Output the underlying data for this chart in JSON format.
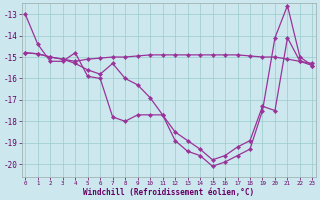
{
  "xlabel": "Windchill (Refroidissement éolien,°C)",
  "bg_color": "#cce8ee",
  "grid_color": "#99cccc",
  "line_color": "#993399",
  "xticks": [
    0,
    1,
    2,
    3,
    4,
    5,
    6,
    7,
    8,
    9,
    10,
    11,
    12,
    13,
    14,
    15,
    16,
    17,
    18,
    19,
    20,
    21,
    22,
    23
  ],
  "yticks": [
    -13,
    -14,
    -15,
    -16,
    -17,
    -18,
    -19,
    -20
  ],
  "ylim": [
    -20.6,
    -12.5
  ],
  "xlim": [
    -0.3,
    23.3
  ],
  "series1_x": [
    0,
    1,
    2,
    3,
    4,
    5,
    6,
    7,
    8,
    9,
    10,
    11,
    12,
    13,
    14,
    15,
    16,
    17,
    18,
    19,
    20,
    21,
    22,
    23
  ],
  "series1_y": [
    -13.0,
    -14.4,
    -15.2,
    -15.2,
    -14.8,
    -15.9,
    -16.0,
    -17.8,
    -18.0,
    -17.7,
    -17.7,
    -17.7,
    -18.9,
    -19.4,
    -19.6,
    -20.1,
    -19.9,
    -19.6,
    -19.3,
    -17.5,
    -14.1,
    -12.6,
    -15.0,
    -15.4
  ],
  "series2_x": [
    0,
    1,
    2,
    3,
    4,
    5,
    6,
    7,
    8,
    9,
    10,
    11,
    12,
    13,
    14,
    15,
    16,
    17,
    18,
    19,
    20,
    21,
    22,
    23
  ],
  "series2_y": [
    -14.8,
    -14.85,
    -15.0,
    -15.1,
    -15.3,
    -15.6,
    -15.8,
    -15.3,
    -16.0,
    -16.3,
    -16.9,
    -17.7,
    -18.5,
    -18.9,
    -19.3,
    -19.8,
    -19.6,
    -19.2,
    -18.9,
    -17.3,
    -17.5,
    -14.1,
    -15.2,
    -15.4
  ],
  "series3_x": [
    0,
    1,
    2,
    3,
    4,
    5,
    6,
    7,
    8,
    9,
    10,
    11,
    12,
    13,
    14,
    15,
    16,
    17,
    18,
    19,
    20,
    21,
    22,
    23
  ],
  "series3_y": [
    -14.8,
    -14.85,
    -15.0,
    -15.1,
    -15.2,
    -15.1,
    -15.05,
    -15.0,
    -15.0,
    -14.95,
    -14.9,
    -14.9,
    -14.9,
    -14.9,
    -14.9,
    -14.9,
    -14.9,
    -14.9,
    -14.95,
    -15.0,
    -15.0,
    -15.1,
    -15.2,
    -15.3
  ]
}
